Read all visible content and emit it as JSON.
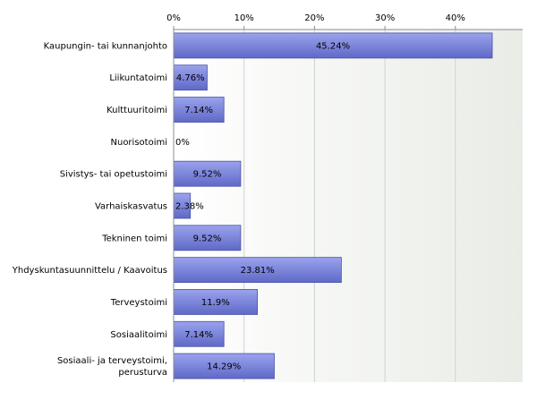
{
  "chart_data": {
    "type": "bar",
    "orientation": "horizontal",
    "title": "",
    "xlabel": "",
    "ylabel": "",
    "xlim": [
      0,
      50
    ],
    "ticks": [
      {
        "value": 0,
        "label": "0%"
      },
      {
        "value": 10,
        "label": "10%"
      },
      {
        "value": 20,
        "label": "20%"
      },
      {
        "value": 30,
        "label": "30%"
      },
      {
        "value": 40,
        "label": "40%"
      }
    ],
    "grid": true,
    "legend": "none",
    "categories": [
      [
        "Kaupungin- tai kunnanjohto"
      ],
      [
        "Liikuntatoimi"
      ],
      [
        "Kulttuuritoimi"
      ],
      [
        "Nuorisotoimi"
      ],
      [
        "Sivistys- tai opetustoimi"
      ],
      [
        "Varhaiskasvatus"
      ],
      [
        "Tekninen toimi"
      ],
      [
        "Yhdyskuntasuunnittelu / Kaavoitus"
      ],
      [
        "Terveystoimi"
      ],
      [
        "Sosiaalitoimi"
      ],
      [
        "Sosiaali- ja terveystoimi,",
        "perusturva"
      ]
    ],
    "values": [
      45.24,
      4.76,
      7.14,
      0,
      9.52,
      2.38,
      9.52,
      23.81,
      11.9,
      7.14,
      14.29
    ],
    "value_labels": [
      "45.24%",
      "4.76%",
      "7.14%",
      "0%",
      "9.52%",
      "2.38%",
      "9.52%",
      "23.81%",
      "11.9%",
      "7.14%",
      "14.29%"
    ],
    "colors": {
      "bar_top": "#9aa3ec",
      "bar_bottom": "#5f69c8",
      "bar_stroke": "#4a52a8",
      "plot_bg_left": "#ffffff",
      "plot_bg_right": "#e9ece6",
      "grid": "#cfd3cf",
      "axis": "#8c8c8c"
    }
  }
}
